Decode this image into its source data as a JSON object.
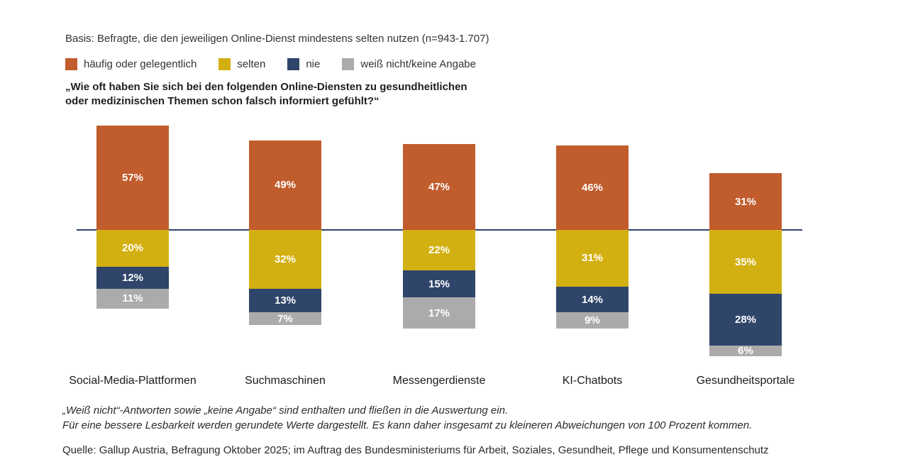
{
  "basis_note": "Basis: Befragte, die den jeweiligen Online-Dienst mindestens selten nutzen (n=943-1.707)",
  "legend": {
    "items": [
      {
        "label": "häufig oder gelegentlich",
        "color": "#C15C2D"
      },
      {
        "label": "selten",
        "color": "#D3B012"
      },
      {
        "label": "nie",
        "color": "#2F456A"
      },
      {
        "label": "weiß nicht/keine Angabe",
        "color": "#ABABAB"
      }
    ]
  },
  "question": {
    "line1": "„Wie oft haben Sie sich bei den folgenden Online-Diensten zu gesundheitlichen",
    "line2": "oder medizinischen Themen schon falsch informiert gefühlt?“"
  },
  "chart_data": {
    "type": "bar",
    "stacked": true,
    "orientation": "vertical",
    "baseline_note": "diverging stacked bars; first series sits above a horizontal baseline, remaining series hang below it",
    "unit": "%",
    "categories": [
      "Social-Media-Plattformen",
      "Suchmaschinen",
      "Messengerdienste",
      "KI-Chatbots",
      "Gesundheitsportale"
    ],
    "series": [
      {
        "name": "häufig oder gelegentlich",
        "color": "#C15C2D",
        "values": [
          57,
          49,
          47,
          46,
          31
        ]
      },
      {
        "name": "selten",
        "color": "#D3B012",
        "values": [
          20,
          32,
          22,
          31,
          35
        ]
      },
      {
        "name": "nie",
        "color": "#2F456A",
        "values": [
          12,
          13,
          15,
          14,
          28
        ]
      },
      {
        "name": "weiß nicht/keine Angabe",
        "color": "#ABABAB",
        "values": [
          11,
          7,
          17,
          9,
          6
        ]
      }
    ],
    "title": "„Wie oft haben Sie sich bei den folgenden Online-Diensten zu gesundheitlichen oder medizinischen Themen schon falsch informiert gefühlt?“",
    "axis_line_color": "#2F456A",
    "value_label_color": "#ffffff",
    "legend_position": "top"
  },
  "footnote": {
    "line1": "„Weiß nicht“-Antworten sowie „keine Angabe“ sind enthalten und fließen in die Auswertung ein.",
    "line2": "Für eine bessere Lesbarkeit werden gerundete Werte dargestellt. Es kann daher insgesamt zu kleineren Abweichungen von 100 Prozent kommen."
  },
  "source": "Quelle: Gallup Austria, Befragung Oktober 2025; im Auftrag des Bundesministeriums für Arbeit, Soziales, Gesundheit, Pflege und Konsumentenschutz"
}
